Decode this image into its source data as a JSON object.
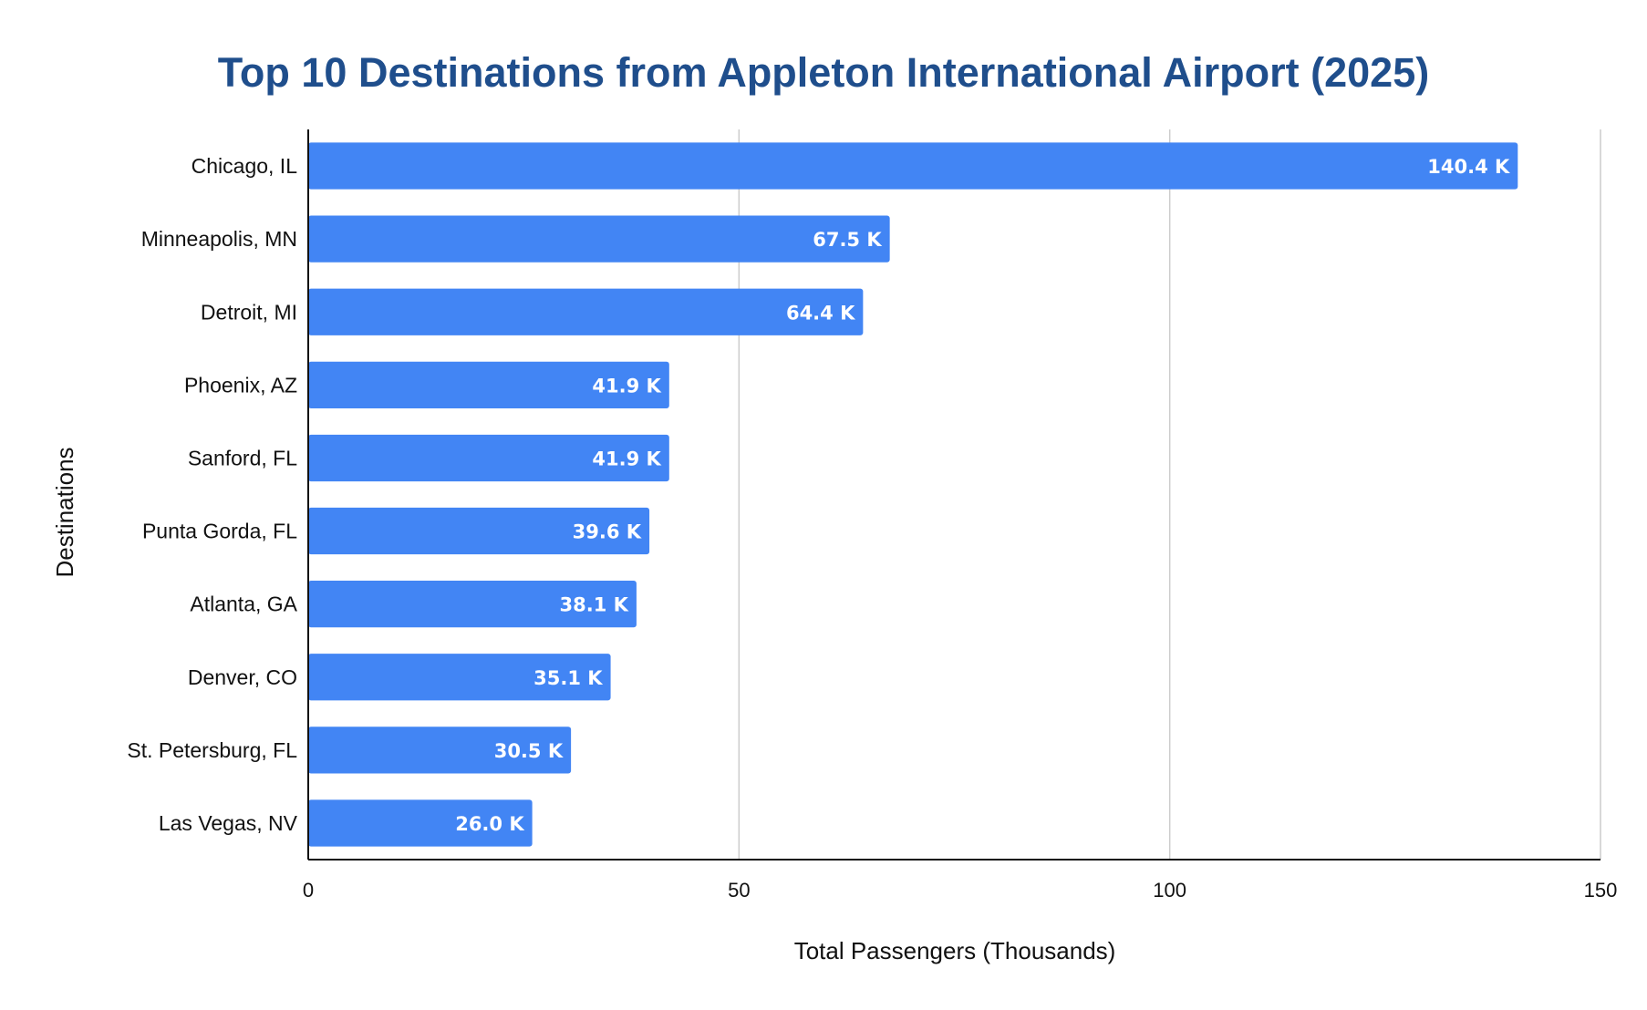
{
  "chart_data": {
    "type": "bar",
    "orientation": "horizontal",
    "title": "Top 10 Destinations from Appleton International Airport (2025)",
    "xlabel": "Total Passengers (Thousands)",
    "ylabel": "Destinations",
    "xlim": [
      0,
      150
    ],
    "x_ticks": [
      "0",
      "50",
      "100",
      "150"
    ],
    "grid": "vertical",
    "categories": [
      "Chicago, IL",
      "Minneapolis, MN",
      "Detroit, MI",
      "Phoenix, AZ",
      "Sanford, FL",
      "Punta Gorda, FL",
      "Atlanta, GA",
      "Denver, CO",
      "St. Petersburg, FL",
      "Las Vegas, NV"
    ],
    "values": [
      140.4,
      67.5,
      64.4,
      41.9,
      41.9,
      39.6,
      38.1,
      35.1,
      30.5,
      26.0
    ],
    "data_labels": [
      "140.4 K",
      "67.5 K",
      "64.4 K",
      "41.9 K",
      "41.9 K",
      "39.6 K",
      "38.1 K",
      "35.1 K",
      "30.5 K",
      "26.0 K"
    ],
    "colors": {
      "bar": "#4285f4",
      "title": "#1f4e8c",
      "grid": "#cccccc",
      "axis": "#111111",
      "data_label": "#ffffff"
    }
  }
}
